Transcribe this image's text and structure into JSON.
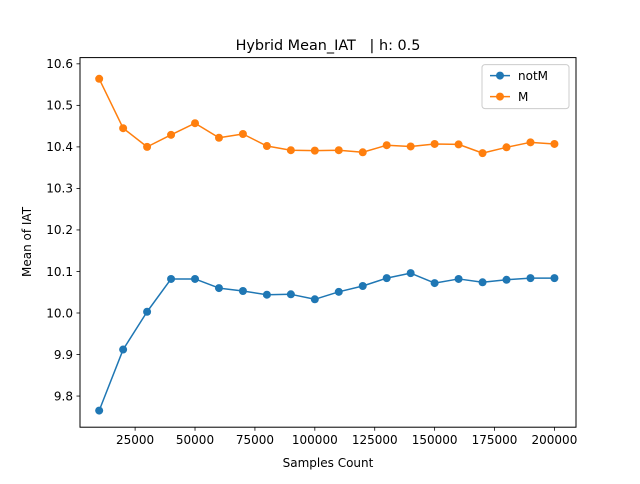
{
  "chart_data": {
    "type": "line",
    "title": "Hybrid Mean_IAT   | h: 0.5",
    "xlabel": "Samples Count",
    "ylabel": "Mean of IAT",
    "xlim": [
      2000,
      209000
    ],
    "ylim": [
      9.725,
      10.615
    ],
    "xticks": [
      25000,
      50000,
      75000,
      100000,
      125000,
      150000,
      175000,
      200000
    ],
    "yticks": [
      9.8,
      9.9,
      10.0,
      10.1,
      10.2,
      10.3,
      10.4,
      10.5,
      10.6
    ],
    "grid": false,
    "legend_position": "top-right",
    "x": [
      10000,
      20000,
      30000,
      40000,
      50000,
      60000,
      70000,
      80000,
      90000,
      100000,
      110000,
      120000,
      130000,
      140000,
      150000,
      160000,
      170000,
      180000,
      190000,
      200000
    ],
    "series": [
      {
        "name": "notM",
        "color": "#1f77b4",
        "values": [
          9.765,
          9.912,
          10.003,
          10.082,
          10.082,
          10.06,
          10.053,
          10.044,
          10.045,
          10.033,
          10.051,
          10.065,
          10.084,
          10.096,
          10.072,
          10.082,
          10.074,
          10.08,
          10.084,
          10.084
        ]
      },
      {
        "name": "M",
        "color": "#ff7f0e",
        "values": [
          10.564,
          10.445,
          10.4,
          10.429,
          10.457,
          10.422,
          10.431,
          10.402,
          10.392,
          10.391,
          10.392,
          10.387,
          10.404,
          10.401,
          10.407,
          10.406,
          10.385,
          10.399,
          10.411,
          10.407
        ]
      }
    ]
  }
}
